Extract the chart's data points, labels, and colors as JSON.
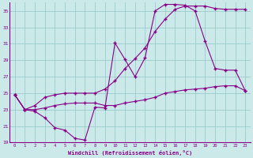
{
  "xlabel": "Windchill (Refroidissement éolien,°C)",
  "background_color": "#cbe9e9",
  "line_color": "#880088",
  "grid_color": "#99cccc",
  "xlim": [
    -0.5,
    23.5
  ],
  "ylim": [
    19,
    36
  ],
  "xticks": [
    0,
    1,
    2,
    3,
    4,
    5,
    6,
    7,
    8,
    9,
    10,
    11,
    12,
    13,
    14,
    15,
    16,
    17,
    18,
    19,
    20,
    21,
    22,
    23
  ],
  "yticks": [
    19,
    21,
    23,
    25,
    27,
    29,
    31,
    33,
    35
  ],
  "line1_x": [
    0,
    1,
    2,
    3,
    4,
    5,
    6,
    7,
    8,
    9,
    10,
    11,
    12,
    13,
    14,
    15,
    16,
    17,
    18,
    19,
    20,
    21,
    22,
    23
  ],
  "line1_y": [
    24.8,
    23.0,
    22.8,
    22.0,
    20.8,
    20.5,
    19.5,
    19.3,
    23.3,
    23.2,
    31.1,
    29.1,
    27.0,
    29.3,
    35.0,
    35.8,
    35.8,
    35.7,
    35.0,
    31.3,
    28.0,
    27.8,
    27.8,
    25.3
  ],
  "line2_x": [
    0,
    1,
    2,
    3,
    4,
    5,
    6,
    7,
    8,
    9,
    10,
    11,
    12,
    13,
    14,
    15,
    16,
    17,
    18,
    19,
    20,
    21,
    22,
    23
  ],
  "line2_y": [
    24.8,
    23.0,
    23.5,
    24.5,
    24.8,
    25.0,
    25.0,
    25.0,
    25.0,
    25.5,
    26.5,
    28.0,
    29.2,
    30.5,
    32.5,
    34.0,
    35.2,
    35.6,
    35.6,
    35.6,
    35.3,
    35.2,
    35.2,
    35.2
  ],
  "line3_x": [
    0,
    1,
    2,
    3,
    4,
    5,
    6,
    7,
    8,
    9,
    10,
    11,
    12,
    13,
    14,
    15,
    16,
    17,
    18,
    19,
    20,
    21,
    22,
    23
  ],
  "line3_y": [
    24.8,
    23.0,
    23.0,
    23.2,
    23.5,
    23.7,
    23.8,
    23.8,
    23.8,
    23.5,
    23.5,
    23.8,
    24.0,
    24.2,
    24.5,
    25.0,
    25.2,
    25.4,
    25.5,
    25.6,
    25.8,
    25.9,
    25.9,
    25.3
  ]
}
